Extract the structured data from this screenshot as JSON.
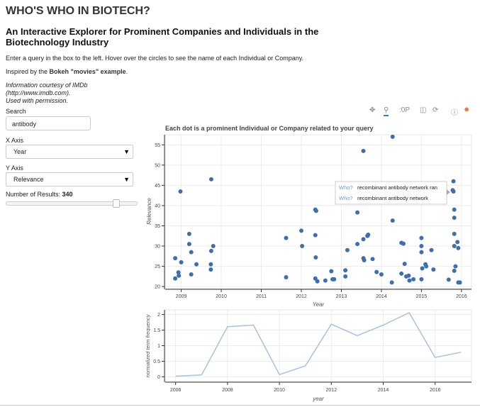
{
  "page": {
    "title": "WHO'S WHO IN BIOTECH?",
    "subtitle": "An Interactive Explorer for Prominent Companies and Individuals in the Biotechnology Industry",
    "instructions": "Enter a query in the box to the left. Hover over the circles to see the name of each Individual or Company.",
    "inspired_prefix": "Inspired by the ",
    "inspired_link": "Bokeh \"movies\" example",
    "inspired_suffix": ".",
    "credits": [
      "Information courtesy of IMDb",
      "(http://www.imdb.com).",
      "Used with permission."
    ]
  },
  "controls": {
    "search_label": "Search",
    "search_value": "antibody",
    "xaxis_label": "X Axis",
    "xaxis_value": "Year",
    "yaxis_label": "Y Axis",
    "yaxis_value": "Relevance",
    "results_label": "Number of Results: ",
    "results_value": "340",
    "results_fraction": 0.85
  },
  "toolbar": {
    "icons": [
      "pan-icon",
      "box-zoom-icon",
      "wheel-zoom-icon",
      "save-icon",
      "reset-icon",
      "help-icon",
      "bokeh-logo-icon"
    ]
  },
  "tooltip": {
    "rows": [
      {
        "key": "Who?",
        "value": "recombinant antibody network ran"
      },
      {
        "key": "Who?",
        "value": "recombinant antibody network"
      }
    ]
  },
  "chart_data": [
    {
      "type": "scatter",
      "title": "Each dot is a prominent Individual or Company related to your query",
      "xlabel": "Year",
      "ylabel": "Relevance",
      "xlim": [
        2008.6,
        2016.25
      ],
      "ylim": [
        19.5,
        57.5
      ],
      "xticks": [
        "2009",
        "2010",
        "2011",
        "2012",
        "2013",
        "2014",
        "2015",
        "2016"
      ],
      "yticks": [
        "20",
        "25",
        "30",
        "35",
        "40",
        "45",
        "50",
        "55"
      ],
      "color": "#3d6fb0",
      "grid": true,
      "points": [
        [
          2008.85,
          27
        ],
        [
          2008.85,
          22
        ],
        [
          2008.93,
          23.5
        ],
        [
          2008.94,
          22.7
        ],
        [
          2009.0,
          26
        ],
        [
          2008.98,
          43.5
        ],
        [
          2009.2,
          33
        ],
        [
          2009.2,
          30.5
        ],
        [
          2009.25,
          28.5
        ],
        [
          2009.25,
          23
        ],
        [
          2009.38,
          25.5
        ],
        [
          2009.75,
          46.5
        ],
        [
          2009.75,
          28.8
        ],
        [
          2009.74,
          25.5
        ],
        [
          2009.74,
          24.2
        ],
        [
          2009.8,
          30
        ],
        [
          2011.62,
          32
        ],
        [
          2011.62,
          22.3
        ],
        [
          2012.0,
          33.8
        ],
        [
          2012.02,
          30
        ],
        [
          2012.35,
          39
        ],
        [
          2012.37,
          38.7
        ],
        [
          2012.35,
          32.7
        ],
        [
          2012.36,
          27.2
        ],
        [
          2012.35,
          22
        ],
        [
          2012.4,
          21.3
        ],
        [
          2012.6,
          21.5
        ],
        [
          2012.75,
          23.8
        ],
        [
          2012.78,
          21.8
        ],
        [
          2012.82,
          21.8
        ],
        [
          2013.1,
          24
        ],
        [
          2013.1,
          22.5
        ],
        [
          2013.15,
          29
        ],
        [
          2013.4,
          30.5
        ],
        [
          2013.4,
          38.3
        ],
        [
          2013.55,
          53.5
        ],
        [
          2013.55,
          31.7
        ],
        [
          2013.55,
          27
        ],
        [
          2013.57,
          26.5
        ],
        [
          2013.65,
          32.5
        ],
        [
          2013.67,
          32.8
        ],
        [
          2013.78,
          26.8
        ],
        [
          2013.88,
          23.6
        ],
        [
          2014.0,
          23
        ],
        [
          2014.28,
          57
        ],
        [
          2014.28,
          36.3
        ],
        [
          2014.26,
          21
        ],
        [
          2014.5,
          30.8
        ],
        [
          2014.55,
          30.6
        ],
        [
          2014.5,
          23.2
        ],
        [
          2014.58,
          25.6
        ],
        [
          2014.62,
          22.5
        ],
        [
          2014.68,
          22.7
        ],
        [
          2014.7,
          21.5
        ],
        [
          2014.8,
          21.8
        ],
        [
          2015.0,
          32
        ],
        [
          2015.0,
          30
        ],
        [
          2015.0,
          28.5
        ],
        [
          2015.02,
          24.5
        ],
        [
          2015.0,
          21.8
        ],
        [
          2015.1,
          25.5
        ],
        [
          2015.12,
          25
        ],
        [
          2015.25,
          29
        ],
        [
          2015.3,
          24.2
        ],
        [
          2015.68,
          21.7
        ],
        [
          2015.8,
          46
        ],
        [
          2015.78,
          43.8
        ],
        [
          2015.8,
          43.5
        ],
        [
          2015.82,
          39
        ],
        [
          2015.82,
          37
        ],
        [
          2015.82,
          33
        ],
        [
          2015.82,
          30
        ],
        [
          2015.9,
          31
        ],
        [
          2015.92,
          29.5
        ],
        [
          2015.85,
          25
        ],
        [
          2015.82,
          23.9
        ],
        [
          2015.92,
          21
        ],
        [
          2015.96,
          21
        ]
      ]
    },
    {
      "type": "line",
      "xlabel": "year",
      "ylabel": "normalized term frequency",
      "xlim": [
        2005.6,
        2017.4
      ],
      "ylim": [
        -0.15,
        2.15
      ],
      "xticks": [
        "2006",
        "2008",
        "2010",
        "2012",
        "2014",
        "2016"
      ],
      "yticks": [
        "0",
        "0.5",
        "1",
        "1.5",
        "2"
      ],
      "color": "#a6c1e0",
      "x": [
        2006,
        2007,
        2008,
        2009,
        2010,
        2011,
        2012,
        2013,
        2014,
        2015,
        2016,
        2017
      ],
      "y": [
        0.02,
        0.06,
        1.61,
        1.66,
        0.07,
        0.35,
        1.69,
        1.32,
        1.66,
        2.06,
        0.62,
        0.79
      ]
    }
  ]
}
